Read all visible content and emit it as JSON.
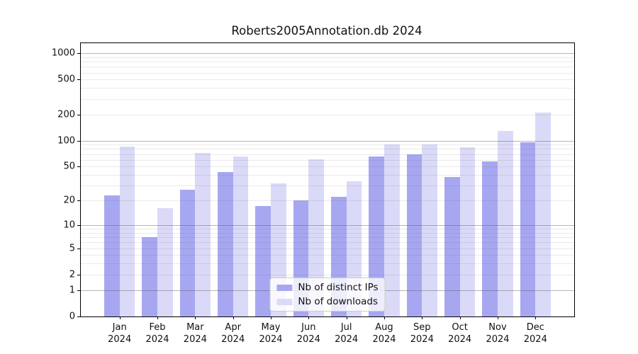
{
  "title": "Roberts2005Annotation.db 2024",
  "chart_data": {
    "type": "bar",
    "title": "Roberts2005Annotation.db 2024",
    "categories": [
      "Jan 2024",
      "Feb 2024",
      "Mar 2024",
      "Apr 2024",
      "May 2024",
      "Jun 2024",
      "Jul 2024",
      "Aug 2024",
      "Sep 2024",
      "Oct 2024",
      "Nov 2024",
      "Dec 2024"
    ],
    "series": [
      {
        "name": "Nb of distinct IPs",
        "color": "#a7a7f1",
        "values": [
          23,
          7,
          27,
          43,
          17,
          20,
          22,
          65,
          70,
          38,
          58,
          95
        ]
      },
      {
        "name": "Nb of downloads",
        "color": "#dadaf8",
        "values": [
          86,
          16,
          72,
          65,
          32,
          61,
          34,
          91,
          90,
          84,
          130,
          210
        ]
      }
    ],
    "xlabel": "",
    "ylabel": "",
    "yscale": "log1p",
    "yticks": [
      0,
      1,
      2,
      5,
      10,
      20,
      50,
      100,
      200,
      500,
      1000
    ],
    "ylim": [
      0,
      1300
    ],
    "grid": true,
    "legend_position": "lower center"
  }
}
